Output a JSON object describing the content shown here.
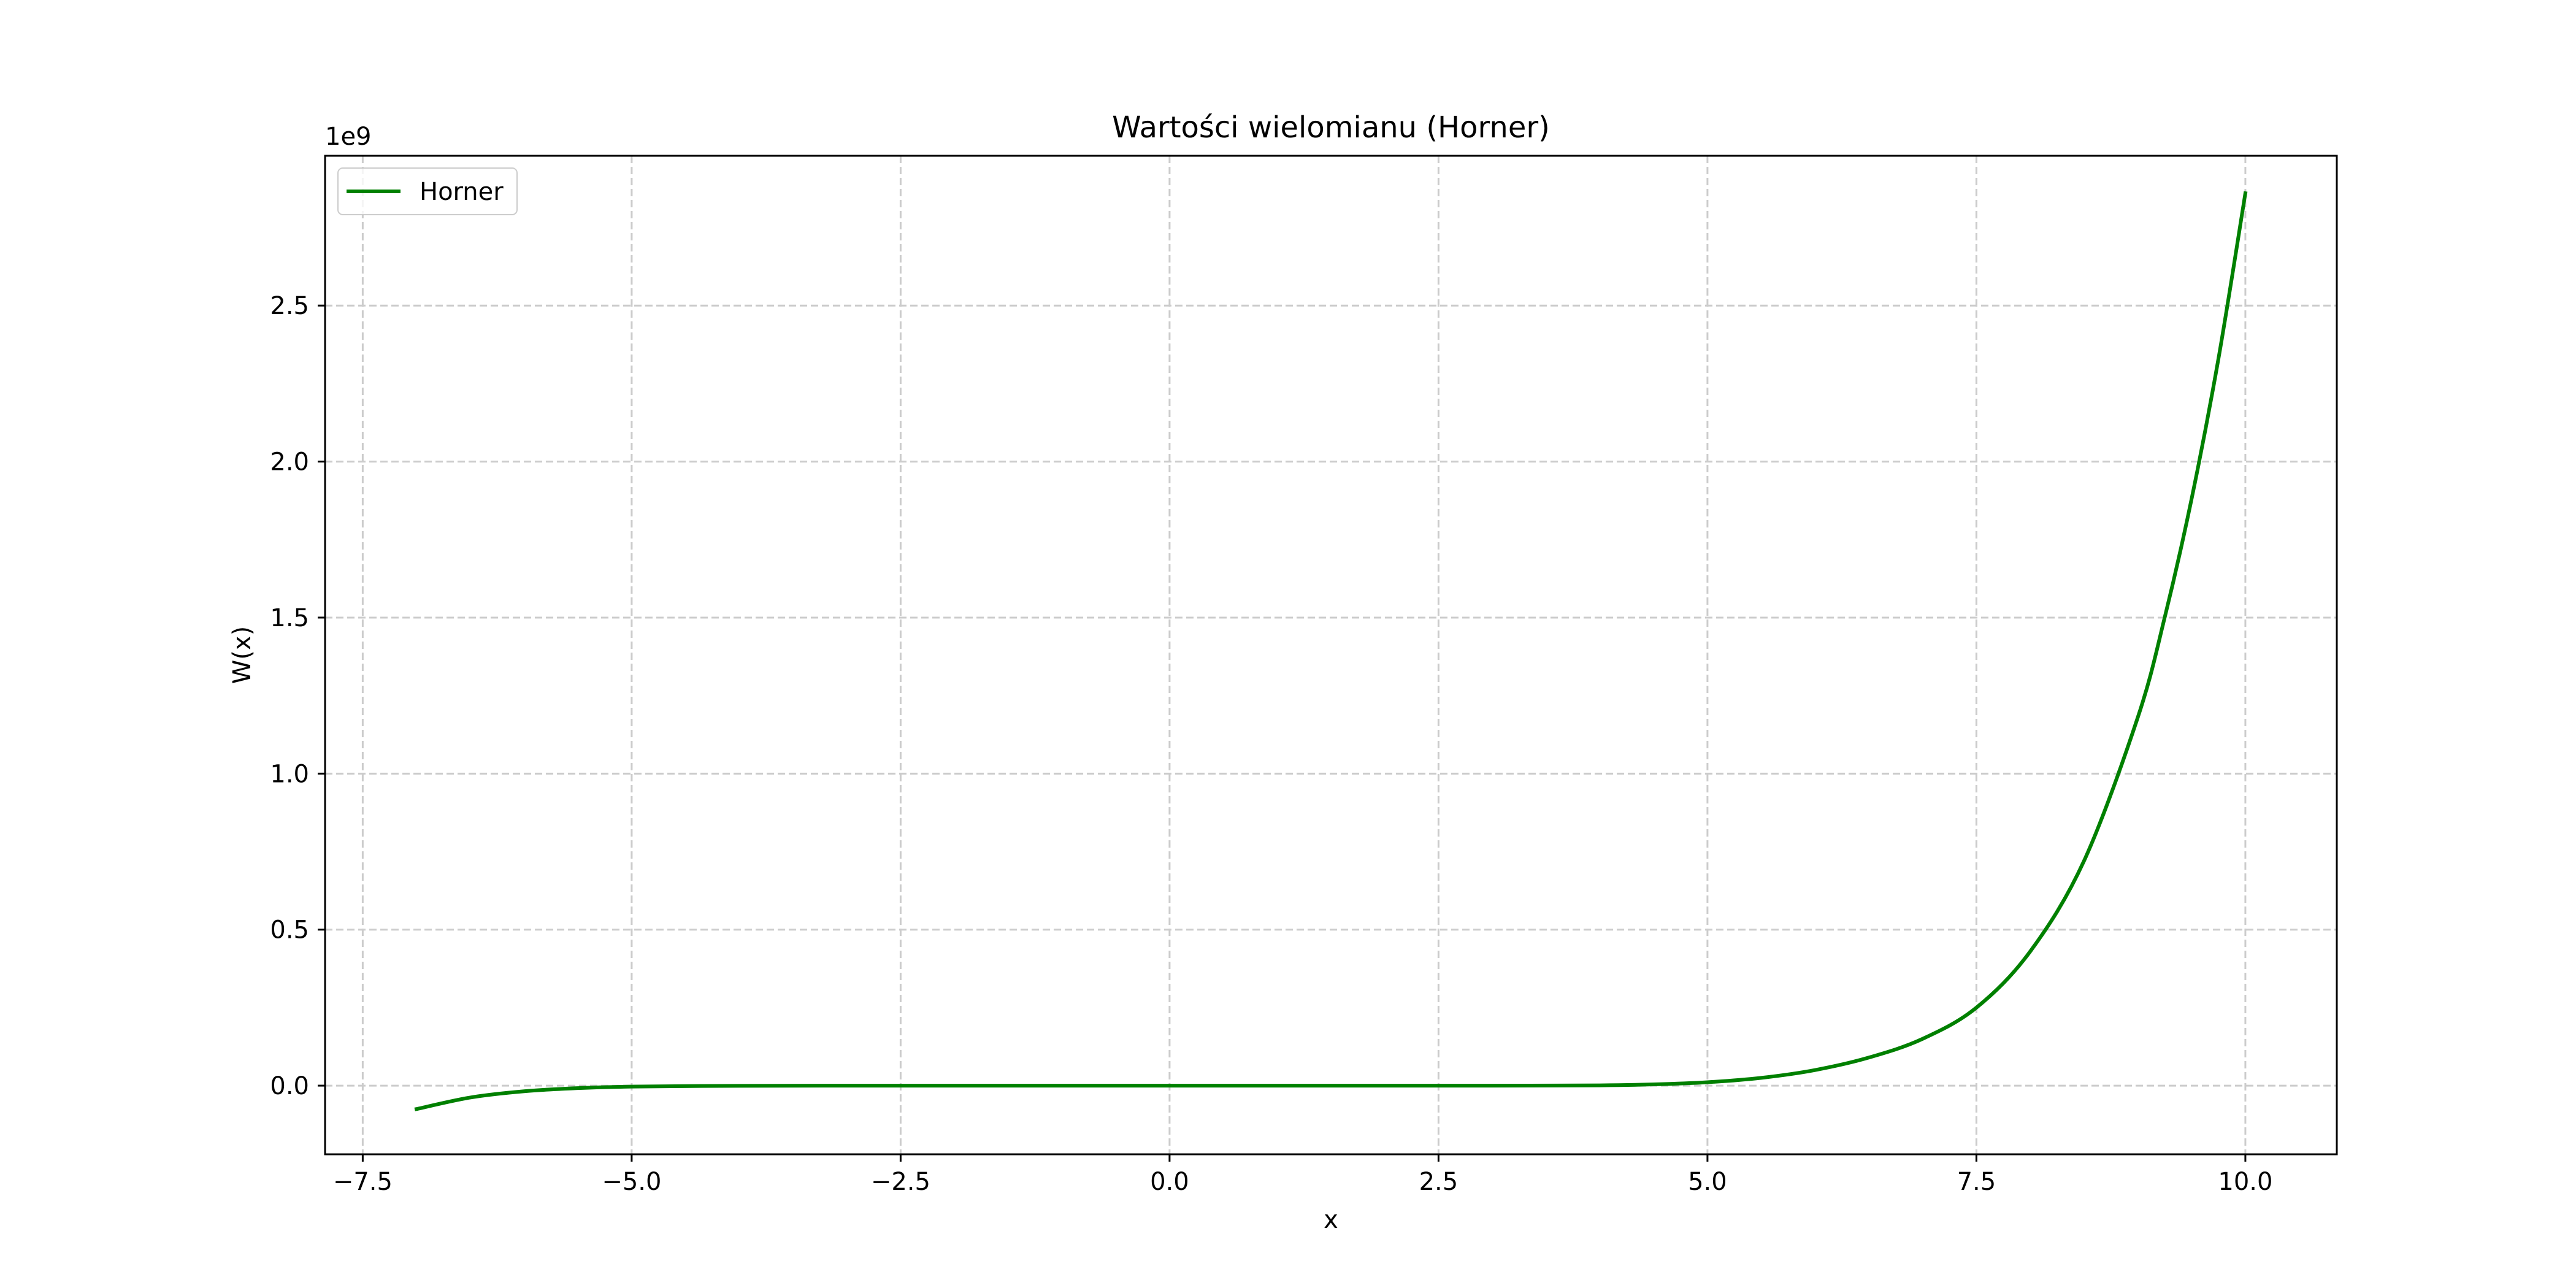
{
  "chart_data": {
    "type": "line",
    "title": "Wartości wielomianu (Horner)",
    "xlabel": "x",
    "ylabel": "W(x)",
    "y_offset_label": "1e9",
    "xlim": [
      -7.85,
      10.85
    ],
    "ylim": [
      -0.22,
      2.98
    ],
    "x_ticks": [
      -7.5,
      -5.0,
      -2.5,
      0.0,
      2.5,
      5.0,
      7.5,
      10.0
    ],
    "x_tick_labels": [
      "−7.5",
      "−5.0",
      "−2.5",
      "0.0",
      "2.5",
      "5.0",
      "7.5",
      "10.0"
    ],
    "y_ticks": [
      0.0,
      0.5,
      1.0,
      1.5,
      2.0,
      2.5
    ],
    "y_tick_labels": [
      "0.0",
      "0.5",
      "1.0",
      "1.5",
      "2.0",
      "2.5"
    ],
    "grid": true,
    "legend_position": "top-left",
    "series": [
      {
        "name": "Horner",
        "color": "#008000",
        "x": [
          -7.0,
          -6.5,
          -6.0,
          -5.5,
          -5.0,
          -4.0,
          -3.0,
          -2.0,
          -1.0,
          0.0,
          1.0,
          2.0,
          3.0,
          4.0,
          4.5,
          5.0,
          5.5,
          6.0,
          6.5,
          7.0,
          7.5,
          8.0,
          8.5,
          9.0,
          9.25,
          9.5,
          9.75,
          10.0
        ],
        "y": [
          -0.075,
          -0.038,
          -0.018,
          -0.008,
          -0.003,
          -0.0005,
          0.0,
          0.0,
          0.0,
          0.0,
          0.0,
          0.0,
          0.0,
          0.001,
          0.004,
          0.011,
          0.025,
          0.05,
          0.09,
          0.15,
          0.25,
          0.43,
          0.72,
          1.18,
          1.5,
          1.88,
          2.33,
          2.86
        ]
      }
    ]
  }
}
